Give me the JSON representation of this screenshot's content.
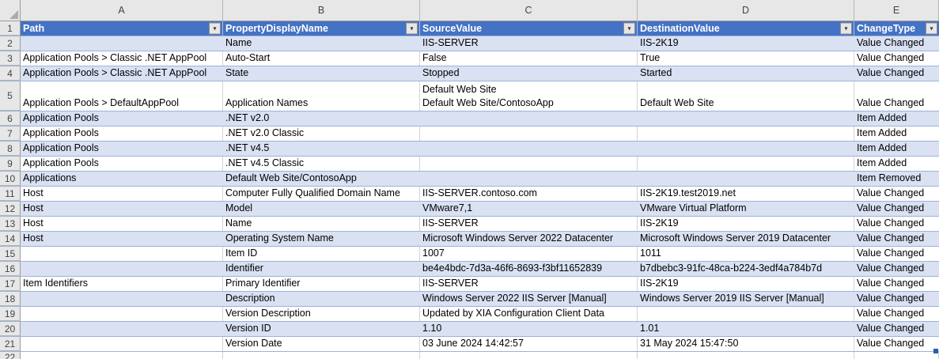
{
  "sheet": {
    "column_letters": [
      "A",
      "B",
      "C",
      "D",
      "E"
    ],
    "header": {
      "row_number": "1",
      "labels": [
        "Path",
        "PropertyDisplayName",
        "SourceValue",
        "DestinationValue",
        "ChangeType"
      ],
      "filter_icon": "▾"
    },
    "rows": [
      {
        "n": "2",
        "cells": [
          "",
          "Name",
          "IIS-SERVER",
          "IIS-2K19",
          "Value Changed"
        ]
      },
      {
        "n": "3",
        "cells": [
          "Application Pools > Classic .NET AppPool",
          "Auto-Start",
          "False",
          "True",
          "Value Changed"
        ]
      },
      {
        "n": "4",
        "cells": [
          "Application Pools > Classic .NET AppPool",
          "State",
          "Stopped",
          "Started",
          "Value Changed"
        ]
      },
      {
        "n": "5",
        "cells": [
          "Application Pools > DefaultAppPool",
          "Application Names",
          "Default Web Site\nDefault Web Site/ContosoApp",
          "Default Web Site",
          "Value Changed"
        ]
      },
      {
        "n": "6",
        "cells": [
          "Application Pools",
          ".NET v2.0",
          "",
          "",
          "Item Added"
        ]
      },
      {
        "n": "7",
        "cells": [
          "Application Pools",
          ".NET v2.0 Classic",
          "",
          "",
          "Item Added"
        ]
      },
      {
        "n": "8",
        "cells": [
          "Application Pools",
          ".NET v4.5",
          "",
          "",
          "Item Added"
        ]
      },
      {
        "n": "9",
        "cells": [
          "Application Pools",
          ".NET v4.5 Classic",
          "",
          "",
          "Item Added"
        ]
      },
      {
        "n": "10",
        "cells": [
          "Applications",
          "Default Web Site/ContosoApp",
          "",
          "",
          "Item Removed"
        ]
      },
      {
        "n": "11",
        "cells": [
          "Host",
          "Computer Fully Qualified Domain Name",
          "IIS-SERVER.contoso.com",
          "IIS-2K19.test2019.net",
          "Value Changed"
        ]
      },
      {
        "n": "12",
        "cells": [
          "Host",
          "Model",
          "VMware7,1",
          "VMware Virtual Platform",
          "Value Changed"
        ]
      },
      {
        "n": "13",
        "cells": [
          "Host",
          "Name",
          "IIS-SERVER",
          "IIS-2K19",
          "Value Changed"
        ]
      },
      {
        "n": "14",
        "cells": [
          "Host",
          "Operating System Name",
          "Microsoft Windows Server 2022 Datacenter",
          "Microsoft Windows Server 2019 Datacenter",
          "Value Changed"
        ]
      },
      {
        "n": "15",
        "cells": [
          "",
          "Item ID",
          "1007",
          "1011",
          "Value Changed"
        ]
      },
      {
        "n": "16",
        "cells": [
          "",
          "Identifier",
          "be4e4bdc-7d3a-46f6-8693-f3bf11652839",
          "b7dbebc3-91fc-48ca-b224-3edf4a784b7d",
          "Value Changed"
        ]
      },
      {
        "n": "17",
        "cells": [
          "Item Identifiers",
          "Primary Identifier",
          "IIS-SERVER",
          "IIS-2K19",
          "Value Changed"
        ]
      },
      {
        "n": "18",
        "cells": [
          "",
          "Description",
          "Windows Server 2022 IIS Server [Manual]",
          "Windows Server 2019 IIS Server [Manual]",
          "Value Changed"
        ]
      },
      {
        "n": "19",
        "cells": [
          "",
          "Version Description",
          "Updated by XIA Configuration Client Data",
          "",
          "Value Changed"
        ]
      },
      {
        "n": "20",
        "cells": [
          "",
          "Version ID",
          "1.10",
          "1.01",
          "Value Changed"
        ]
      },
      {
        "n": "21",
        "cells": [
          "",
          "Version Date",
          "03 June 2024 14:42:57",
          "31 May 2024 15:47:50",
          "Value Changed"
        ]
      }
    ],
    "partial_row_number": "22",
    "colors": {
      "header_bg": "#4472C4",
      "header_text": "#FFFFFF",
      "banded_row_fill": "#D9E1F2",
      "row_divider": "#9DB3D8",
      "gridline": "#D4D4D4",
      "frame_bg": "#E7E7E7",
      "fill_handle": "#2E5CA8"
    }
  }
}
